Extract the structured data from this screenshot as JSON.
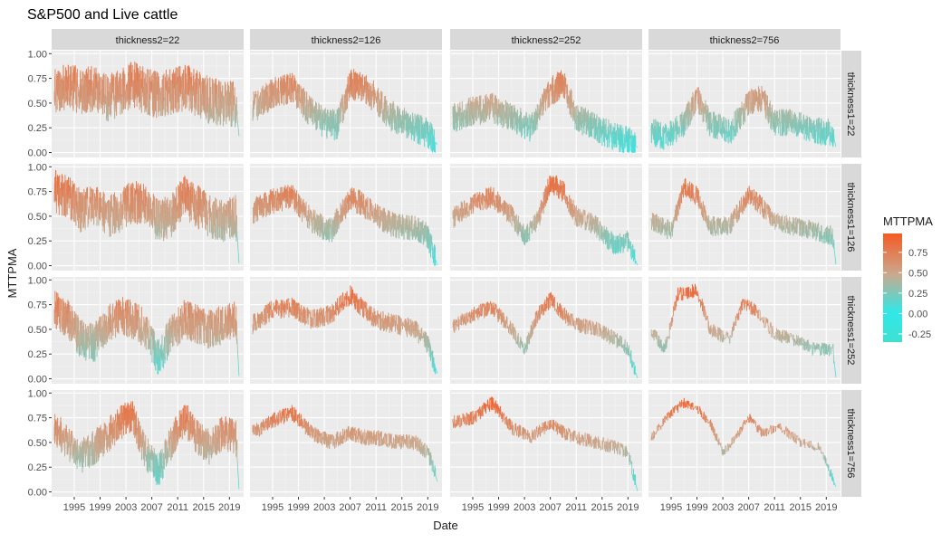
{
  "chart_data": {
    "type": "line",
    "title": "S&P500 and Live cattle",
    "xlabel": "Date",
    "ylabel": "MTTPMA",
    "facet_columns": [
      "thickness2=22",
      "thickness2=126",
      "thickness2=252",
      "thickness2=756"
    ],
    "facet_rows": [
      "thickness1=22",
      "thickness1=126",
      "thickness1=252",
      "thickness1=756"
    ],
    "xlim": [
      1991.5,
      2021.2
    ],
    "ylim": [
      -0.05,
      1.03
    ],
    "x_ticks": [
      1995,
      1999,
      2003,
      2007,
      2011,
      2015,
      2019
    ],
    "x_tick_labels": [
      "1995",
      "1999",
      "2003",
      "2007",
      "2011",
      "2015",
      "2019"
    ],
    "y_ticks": [
      0,
      0.25,
      0.5,
      0.75,
      1.0
    ],
    "y_tick_labels": [
      "0.00",
      "0.25",
      "0.50",
      "0.75",
      "1.00"
    ],
    "grid": true,
    "legend": {
      "title": "MTTPMA",
      "placement": "right",
      "breaks": [
        0.75,
        0.5,
        0.25,
        0,
        -0.25
      ],
      "break_labels": [
        "0.75",
        "0.50",
        "0.25",
        "0.00",
        "-0.25"
      ],
      "range": [
        -0.35,
        0.98
      ],
      "color_low": "#40E0D0",
      "color_mid": "#2FE8E8",
      "color_high": "#F45A24"
    },
    "colors": {
      "panel_bg": "#EBEBEB",
      "grid_major": "#FFFFFF",
      "strip_bg": "#D9D9D9",
      "text": "#1A1A1A",
      "axis_text": "#4D4D4D"
    },
    "series_generation_note": "",
    "panels": [
      {
        "row": 0,
        "col": 0,
        "anchors": [
          [
            1991.9,
            0.62
          ],
          [
            1994,
            0.68
          ],
          [
            1996,
            0.62
          ],
          [
            1998,
            0.65
          ],
          [
            2000,
            0.55
          ],
          [
            2002,
            0.6
          ],
          [
            2004,
            0.7
          ],
          [
            2006,
            0.62
          ],
          [
            2008,
            0.58
          ],
          [
            2010,
            0.62
          ],
          [
            2012,
            0.66
          ],
          [
            2014,
            0.6
          ],
          [
            2016,
            0.52
          ],
          [
            2018,
            0.5
          ],
          [
            2020,
            0.48
          ],
          [
            2020.5,
            0.15
          ]
        ],
        "amp": 0.24,
        "hold": 0.05,
        "seed": 11
      },
      {
        "row": 0,
        "col": 1,
        "anchors": [
          [
            1991.9,
            0.45
          ],
          [
            1995,
            0.6
          ],
          [
            1998,
            0.65
          ],
          [
            2001,
            0.4
          ],
          [
            2003,
            0.3
          ],
          [
            2005,
            0.28
          ],
          [
            2007,
            0.7
          ],
          [
            2009,
            0.65
          ],
          [
            2011,
            0.55
          ],
          [
            2013,
            0.38
          ],
          [
            2016,
            0.28
          ],
          [
            2019,
            0.2
          ],
          [
            2020.5,
            0.08
          ]
        ],
        "amp": 0.16,
        "hold": 0.08,
        "seed": 12
      },
      {
        "row": 0,
        "col": 2,
        "anchors": [
          [
            1991.9,
            0.35
          ],
          [
            1995,
            0.42
          ],
          [
            1998,
            0.45
          ],
          [
            2001,
            0.35
          ],
          [
            2004,
            0.25
          ],
          [
            2007,
            0.62
          ],
          [
            2009,
            0.7
          ],
          [
            2011,
            0.35
          ],
          [
            2014,
            0.25
          ],
          [
            2017,
            0.15
          ],
          [
            2019,
            0.12
          ],
          [
            2020.5,
            0.05
          ]
        ],
        "amp": 0.15,
        "hold": 0.1,
        "seed": 13
      },
      {
        "row": 0,
        "col": 3,
        "anchors": [
          [
            1991.9,
            0.22
          ],
          [
            1994,
            0.15
          ],
          [
            1997,
            0.3
          ],
          [
            1999,
            0.55
          ],
          [
            2001,
            0.3
          ],
          [
            2004,
            0.2
          ],
          [
            2007,
            0.5
          ],
          [
            2009,
            0.55
          ],
          [
            2011,
            0.3
          ],
          [
            2014,
            0.3
          ],
          [
            2017,
            0.22
          ],
          [
            2020,
            0.2
          ],
          [
            2020.5,
            0.05
          ]
        ],
        "amp": 0.14,
        "hold": 0.12,
        "seed": 14
      },
      {
        "row": 1,
        "col": 0,
        "anchors": [
          [
            1991.9,
            0.75
          ],
          [
            1994,
            0.7
          ],
          [
            1996,
            0.55
          ],
          [
            1998,
            0.62
          ],
          [
            2000,
            0.5
          ],
          [
            2002,
            0.55
          ],
          [
            2004,
            0.65
          ],
          [
            2006,
            0.62
          ],
          [
            2008,
            0.45
          ],
          [
            2010,
            0.5
          ],
          [
            2012,
            0.7
          ],
          [
            2014,
            0.6
          ],
          [
            2016,
            0.5
          ],
          [
            2018,
            0.45
          ],
          [
            2020,
            0.5
          ],
          [
            2020.5,
            0.0
          ]
        ],
        "amp": 0.22,
        "hold": 0.06,
        "seed": 21
      },
      {
        "row": 1,
        "col": 1,
        "anchors": [
          [
            1991.9,
            0.55
          ],
          [
            1995,
            0.65
          ],
          [
            1998,
            0.7
          ],
          [
            2001,
            0.45
          ],
          [
            2004,
            0.35
          ],
          [
            2007,
            0.68
          ],
          [
            2009,
            0.62
          ],
          [
            2011,
            0.5
          ],
          [
            2014,
            0.4
          ],
          [
            2017,
            0.38
          ],
          [
            2019,
            0.3
          ],
          [
            2020.5,
            0.0
          ]
        ],
        "amp": 0.13,
        "hold": 0.14,
        "seed": 22
      },
      {
        "row": 1,
        "col": 2,
        "anchors": [
          [
            1991.9,
            0.48
          ],
          [
            1995,
            0.62
          ],
          [
            1998,
            0.7
          ],
          [
            2001,
            0.5
          ],
          [
            2003,
            0.3
          ],
          [
            2005,
            0.45
          ],
          [
            2007,
            0.85
          ],
          [
            2009,
            0.75
          ],
          [
            2011,
            0.5
          ],
          [
            2014,
            0.4
          ],
          [
            2017,
            0.2
          ],
          [
            2019,
            0.25
          ],
          [
            2020.5,
            0.0
          ]
        ],
        "amp": 0.11,
        "hold": 0.2,
        "seed": 23
      },
      {
        "row": 1,
        "col": 3,
        "anchors": [
          [
            1991.9,
            0.45
          ],
          [
            1995,
            0.35
          ],
          [
            1997,
            0.8
          ],
          [
            1999,
            0.7
          ],
          [
            2001,
            0.4
          ],
          [
            2004,
            0.4
          ],
          [
            2007,
            0.72
          ],
          [
            2009,
            0.6
          ],
          [
            2011,
            0.45
          ],
          [
            2014,
            0.4
          ],
          [
            2017,
            0.35
          ],
          [
            2020,
            0.3
          ],
          [
            2020.5,
            0.0
          ]
        ],
        "amp": 0.1,
        "hold": 0.25,
        "seed": 24
      },
      {
        "row": 2,
        "col": 0,
        "anchors": [
          [
            1991.9,
            0.7
          ],
          [
            1994,
            0.6
          ],
          [
            1996,
            0.4
          ],
          [
            1998,
            0.35
          ],
          [
            2000,
            0.55
          ],
          [
            2002,
            0.65
          ],
          [
            2004,
            0.6
          ],
          [
            2006,
            0.5
          ],
          [
            2008,
            0.2
          ],
          [
            2010,
            0.45
          ],
          [
            2012,
            0.6
          ],
          [
            2014,
            0.55
          ],
          [
            2016,
            0.5
          ],
          [
            2018,
            0.55
          ],
          [
            2020,
            0.6
          ],
          [
            2020.5,
            0.0
          ]
        ],
        "amp": 0.2,
        "hold": 0.07,
        "seed": 31
      },
      {
        "row": 2,
        "col": 1,
        "anchors": [
          [
            1991.9,
            0.55
          ],
          [
            1995,
            0.7
          ],
          [
            1998,
            0.72
          ],
          [
            2001,
            0.6
          ],
          [
            2004,
            0.65
          ],
          [
            2007,
            0.85
          ],
          [
            2009,
            0.7
          ],
          [
            2011,
            0.6
          ],
          [
            2014,
            0.55
          ],
          [
            2017,
            0.5
          ],
          [
            2019,
            0.35
          ],
          [
            2020.5,
            0.05
          ]
        ],
        "amp": 0.1,
        "hold": 0.2,
        "seed": 32
      },
      {
        "row": 2,
        "col": 2,
        "anchors": [
          [
            1991.9,
            0.52
          ],
          [
            1995,
            0.65
          ],
          [
            1998,
            0.72
          ],
          [
            2001,
            0.5
          ],
          [
            2003,
            0.3
          ],
          [
            2005,
            0.65
          ],
          [
            2007,
            0.8
          ],
          [
            2009,
            0.65
          ],
          [
            2011,
            0.55
          ],
          [
            2014,
            0.5
          ],
          [
            2017,
            0.4
          ],
          [
            2019,
            0.3
          ],
          [
            2020.5,
            0.0
          ]
        ],
        "amp": 0.08,
        "hold": 0.3,
        "seed": 33
      },
      {
        "row": 2,
        "col": 3,
        "anchors": [
          [
            1991.9,
            0.5
          ],
          [
            1994,
            0.3
          ],
          [
            1996,
            0.85
          ],
          [
            1999,
            0.9
          ],
          [
            2001,
            0.5
          ],
          [
            2004,
            0.4
          ],
          [
            2006,
            0.75
          ],
          [
            2008,
            0.7
          ],
          [
            2011,
            0.45
          ],
          [
            2014,
            0.4
          ],
          [
            2017,
            0.3
          ],
          [
            2020,
            0.3
          ],
          [
            2020.5,
            0.0
          ]
        ],
        "amp": 0.07,
        "hold": 0.45,
        "seed": 34
      },
      {
        "row": 3,
        "col": 0,
        "anchors": [
          [
            1991.9,
            0.65
          ],
          [
            1994,
            0.5
          ],
          [
            1996,
            0.35
          ],
          [
            1998,
            0.45
          ],
          [
            2000,
            0.55
          ],
          [
            2002,
            0.7
          ],
          [
            2004,
            0.75
          ],
          [
            2006,
            0.4
          ],
          [
            2008,
            0.2
          ],
          [
            2010,
            0.5
          ],
          [
            2012,
            0.75
          ],
          [
            2014,
            0.55
          ],
          [
            2016,
            0.45
          ],
          [
            2018,
            0.6
          ],
          [
            2020,
            0.55
          ],
          [
            2020.5,
            0.0
          ]
        ],
        "amp": 0.18,
        "hold": 0.08,
        "seed": 41
      },
      {
        "row": 3,
        "col": 1,
        "anchors": [
          [
            1991.9,
            0.6
          ],
          [
            1995,
            0.72
          ],
          [
            1998,
            0.8
          ],
          [
            2001,
            0.6
          ],
          [
            2004,
            0.5
          ],
          [
            2007,
            0.6
          ],
          [
            2009,
            0.55
          ],
          [
            2011,
            0.55
          ],
          [
            2014,
            0.5
          ],
          [
            2017,
            0.5
          ],
          [
            2019,
            0.4
          ],
          [
            2020.5,
            0.1
          ]
        ],
        "amp": 0.08,
        "hold": 0.3,
        "seed": 42
      },
      {
        "row": 3,
        "col": 2,
        "anchors": [
          [
            1991.9,
            0.7
          ],
          [
            1995,
            0.75
          ],
          [
            1998,
            0.9
          ],
          [
            2001,
            0.65
          ],
          [
            2004,
            0.55
          ],
          [
            2007,
            0.7
          ],
          [
            2009,
            0.6
          ],
          [
            2011,
            0.55
          ],
          [
            2014,
            0.5
          ],
          [
            2017,
            0.45
          ],
          [
            2019,
            0.4
          ],
          [
            2020.5,
            0.0
          ]
        ],
        "amp": 0.07,
        "hold": 0.4,
        "seed": 43
      },
      {
        "row": 3,
        "col": 3,
        "anchors": [
          [
            1991.9,
            0.55
          ],
          [
            1995,
            0.8
          ],
          [
            1997,
            0.9
          ],
          [
            1999,
            0.85
          ],
          [
            2001,
            0.7
          ],
          [
            2003,
            0.4
          ],
          [
            2005,
            0.55
          ],
          [
            2007,
            0.75
          ],
          [
            2009,
            0.6
          ],
          [
            2012,
            0.65
          ],
          [
            2015,
            0.5
          ],
          [
            2018,
            0.45
          ],
          [
            2020.5,
            0.05
          ]
        ],
        "amp": 0.05,
        "hold": 0.55,
        "seed": 44
      }
    ]
  }
}
